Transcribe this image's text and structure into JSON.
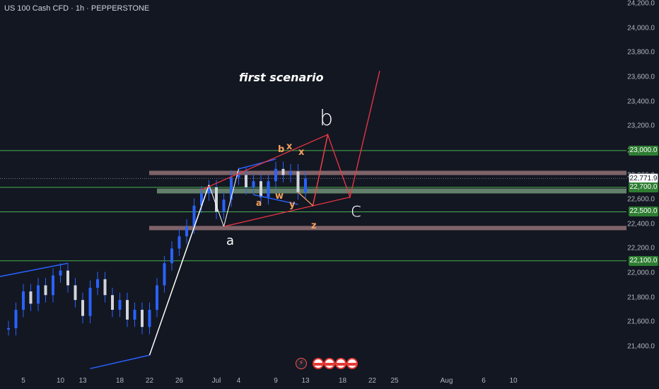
{
  "symbol_title": "US 100 Cash CFD · 1h · PEPPERSTONE",
  "scenario_label": "first scenario",
  "colors": {
    "background": "#131722",
    "candles": "#2962ff",
    "support_zone": "#a5d6a7",
    "resistance_zone": "#d7a4a4",
    "level_lines": "#4caf50",
    "red_path": "#f23645",
    "orange_path": "#f5a05a",
    "blue_lines": "#2962ff",
    "white_lines": "#ffffff"
  },
  "price_badges": [
    {
      "price": "23,000.0",
      "value": 23000,
      "kind": "level"
    },
    {
      "price": "22,771.9",
      "value": 22771.9,
      "kind": "current"
    },
    {
      "price": "22,700.0",
      "value": 22700,
      "kind": "level"
    },
    {
      "price": "22,500.0",
      "value": 22500,
      "kind": "level"
    },
    {
      "price": "22,100.0",
      "value": 22100,
      "kind": "level"
    }
  ],
  "wave_labels": {
    "b_major": "b",
    "c_major": "c",
    "a_major": "a",
    "x_upper": "x",
    "x_right": "x",
    "b_small": "b",
    "w": "w",
    "y": "y",
    "z": "z",
    "a_small": "a"
  },
  "event_icons": [
    "lightning-icon",
    "us-flag-icon",
    "us-flag-icon",
    "us-flag-icon",
    "us-flag-icon"
  ],
  "chart_data": {
    "type": "line",
    "title": "US 100 Cash CFD · 1h · PEPPERSTONE",
    "xlabel": "",
    "ylabel": "",
    "ylim": [
      21300,
      24250
    ],
    "y_ticks": [
      "24,200.0",
      "24,000.0",
      "23,800.0",
      "23,600.0",
      "23,400.0",
      "23,200.0",
      "23,000.0",
      "22,800.0",
      "22,600.0",
      "22,400.0",
      "22,200.0",
      "22,000.0",
      "21,800.0",
      "21,600.0",
      "21,400.0"
    ],
    "y_tick_values": [
      24200,
      24000,
      23800,
      23600,
      23400,
      23200,
      23000,
      22800,
      22600,
      22400,
      22200,
      22000,
      21800,
      21600,
      21400
    ],
    "x_ticks": [
      "5",
      "10",
      "13",
      "18",
      "22",
      "26",
      "Jul",
      "4",
      "9",
      "13",
      "18",
      "22",
      "25",
      "Aug",
      "6",
      "10"
    ],
    "x_tick_dates": [
      "2025-06-05",
      "2025-06-10",
      "2025-06-13",
      "2025-06-18",
      "2025-06-22",
      "2025-06-26",
      "2025-07-01",
      "2025-07-04",
      "2025-07-09",
      "2025-07-13",
      "2025-07-18",
      "2025-07-22",
      "2025-07-25",
      "2025-08-01",
      "2025-08-06",
      "2025-08-10"
    ],
    "price_series": [
      [
        "2025-06-03",
        21550
      ],
      [
        "2025-06-04",
        21700
      ],
      [
        "2025-06-05",
        21850
      ],
      [
        "2025-06-06",
        21750
      ],
      [
        "2025-06-07",
        21900
      ],
      [
        "2025-06-08",
        21820
      ],
      [
        "2025-06-09",
        21980
      ],
      [
        "2025-06-10",
        22020
      ],
      [
        "2025-06-11",
        21900
      ],
      [
        "2025-06-12",
        21780
      ],
      [
        "2025-06-13",
        21650
      ],
      [
        "2025-06-14",
        21880
      ],
      [
        "2025-06-15",
        21950
      ],
      [
        "2025-06-16",
        21820
      ],
      [
        "2025-06-17",
        21700
      ],
      [
        "2025-06-18",
        21780
      ],
      [
        "2025-06-19",
        21620
      ],
      [
        "2025-06-20",
        21700
      ],
      [
        "2025-06-21",
        21560
      ],
      [
        "2025-06-22",
        21700
      ],
      [
        "2025-06-23",
        21900
      ],
      [
        "2025-06-24",
        22080
      ],
      [
        "2025-06-25",
        22200
      ],
      [
        "2025-06-26",
        22300
      ],
      [
        "2025-06-27",
        22380
      ],
      [
        "2025-06-28",
        22550
      ],
      [
        "2025-06-29",
        22650
      ],
      [
        "2025-06-30",
        22700
      ],
      [
        "2025-07-01",
        22500
      ],
      [
        "2025-07-02",
        22600
      ],
      [
        "2025-07-03",
        22780
      ],
      [
        "2025-07-04",
        22800
      ],
      [
        "2025-07-05",
        22700
      ],
      [
        "2025-07-06",
        22750
      ],
      [
        "2025-07-07",
        22620
      ],
      [
        "2025-07-08",
        22750
      ],
      [
        "2025-07-09",
        22850
      ],
      [
        "2025-07-10",
        22800
      ],
      [
        "2025-07-11",
        22830
      ],
      [
        "2025-07-12",
        22660
      ],
      [
        "2025-07-13",
        22772
      ]
    ],
    "level_lines": [
      23000,
      22700,
      22500,
      22100
    ],
    "zones": [
      {
        "name": "upper zone",
        "from": 22800,
        "to": 22835
      },
      {
        "name": "middle zone",
        "from": 22650,
        "to": 22690
      },
      {
        "name": "lower zone",
        "from": 22350,
        "to": 22385
      }
    ],
    "scenario_path": [
      [
        "2025-07-14",
        22550
      ],
      [
        "2025-07-16",
        23130
      ],
      [
        "2025-07-19",
        22620
      ],
      [
        "2025-07-23",
        23650
      ]
    ],
    "current_price": 22771.9
  }
}
